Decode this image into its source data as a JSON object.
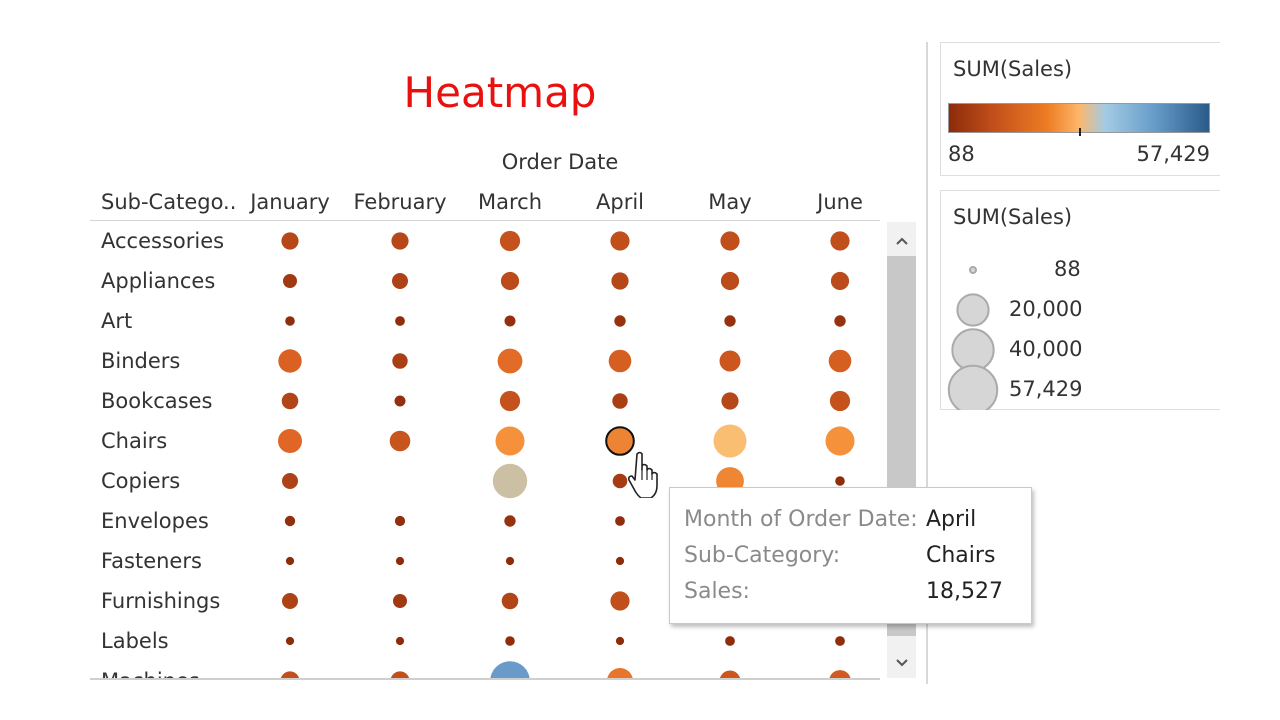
{
  "title": "Heatmap",
  "column_group_label": "Order Date",
  "row_header": "Sub-Catego..",
  "chart_data": {
    "type": "scatter",
    "encoding": "size and color by SUM(Sales)",
    "columns": [
      "January",
      "February",
      "March",
      "April",
      "May",
      "June"
    ],
    "rows": [
      {
        "label": "Accessories",
        "values": [
          5000,
          5000,
          8000,
          7000,
          7000,
          7000
        ]
      },
      {
        "label": "Appliances",
        "values": [
          2500,
          4000,
          6000,
          5000,
          6000,
          6000
        ]
      },
      {
        "label": "Art",
        "values": [
          500,
          600,
          1000,
          1200,
          1200,
          1200
        ]
      },
      {
        "label": "Binders",
        "values": [
          12000,
          3500,
          14000,
          11000,
          9000,
          11000
        ]
      },
      {
        "label": "Bookcases",
        "values": [
          4500,
          1000,
          8000,
          3500,
          5000,
          8000
        ]
      },
      {
        "label": "Chairs",
        "values": [
          13000,
          8500,
          21000,
          18527,
          29000,
          21000
        ]
      },
      {
        "label": "Copiers",
        "values": [
          4000,
          0,
          32000,
          3000,
          19000,
          500
        ]
      },
      {
        "label": "Envelopes",
        "values": [
          800,
          700,
          1200,
          600,
          0,
          0
        ]
      },
      {
        "label": "Fasteners",
        "values": [
          200,
          200,
          200,
          200,
          0,
          0
        ]
      },
      {
        "label": "Furnishings",
        "values": [
          4000,
          2500,
          4500,
          7000,
          0,
          0
        ]
      },
      {
        "label": "Labels",
        "values": [
          200,
          200,
          500,
          200,
          600,
          600
        ]
      },
      {
        "label": "Machines",
        "values": [
          7000,
          7000,
          45000,
          16000,
          9000,
          10000
        ]
      }
    ],
    "color_legend": {
      "title": "SUM(Sales)",
      "min_label": "88",
      "max_label": "57,429"
    },
    "size_legend": {
      "title": "SUM(Sales)",
      "items": [
        {
          "label": "88",
          "value": 88
        },
        {
          "label": "20,000",
          "value": 20000
        },
        {
          "label": "40,000",
          "value": 40000
        },
        {
          "label": "57,429",
          "value": 57429
        }
      ]
    },
    "highlighted": {
      "row": "Chairs",
      "column": "April"
    }
  },
  "tooltip": {
    "month_key": "Month of Order Date:",
    "month_value": "April",
    "subcat_key": "Sub-Category:",
    "subcat_value": "Chairs",
    "sales_key": "Sales:",
    "sales_value": "18,527"
  },
  "scroll": {
    "up_icon": "chevron-up-icon",
    "down_icon": "chevron-down-icon"
  }
}
